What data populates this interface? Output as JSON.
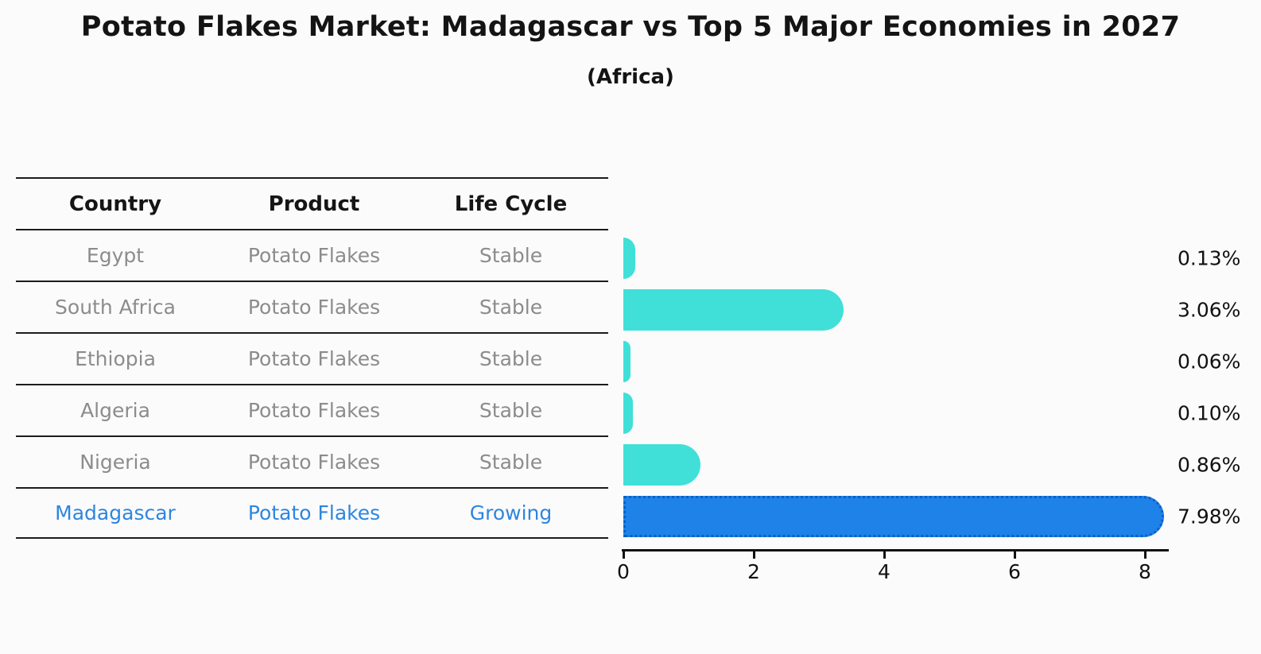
{
  "title": "Potato Flakes Market: Madagascar vs Top 5 Major Economies in 2027",
  "subtitle": "(Africa)",
  "table": {
    "headers": [
      "Country",
      "Product",
      "Life Cycle"
    ],
    "rows": [
      {
        "country": "Egypt",
        "product": "Potato Flakes",
        "life_cycle": "Stable",
        "highlight": false
      },
      {
        "country": "South Africa",
        "product": "Potato Flakes",
        "life_cycle": "Stable",
        "highlight": false
      },
      {
        "country": "Ethiopia",
        "product": "Potato Flakes",
        "life_cycle": "Stable",
        "highlight": false
      },
      {
        "country": "Algeria",
        "product": "Potato Flakes",
        "life_cycle": "Stable",
        "highlight": false
      },
      {
        "country": "Nigeria",
        "product": "Potato Flakes",
        "life_cycle": "Stable",
        "highlight": false
      },
      {
        "country": "Madagascar",
        "product": "Potato Flakes",
        "life_cycle": "Growing",
        "highlight": true
      }
    ]
  },
  "chart_data": {
    "type": "bar",
    "orientation": "horizontal",
    "categories": [
      "Egypt",
      "South Africa",
      "Ethiopia",
      "Algeria",
      "Nigeria",
      "Madagascar"
    ],
    "values": [
      0.13,
      3.06,
      0.06,
      0.1,
      0.86,
      7.98
    ],
    "labels": [
      "0.13%",
      "3.06%",
      "0.06%",
      "0.10%",
      "0.86%",
      "7.98%"
    ],
    "xticks": [
      "0",
      "2",
      "4",
      "6",
      "8"
    ],
    "xtick_values": [
      0,
      2,
      4,
      6,
      8
    ],
    "xlim": [
      0,
      8.4
    ],
    "grid": false,
    "legend": null,
    "bar_color": "#40E0D8",
    "highlight_index": 5,
    "highlight_color": "#1E82E8",
    "highlight_border_color": "#0C5FC8",
    "highlight_text_color": "#2E86DE",
    "row_text_color": "#8C8C8C"
  }
}
